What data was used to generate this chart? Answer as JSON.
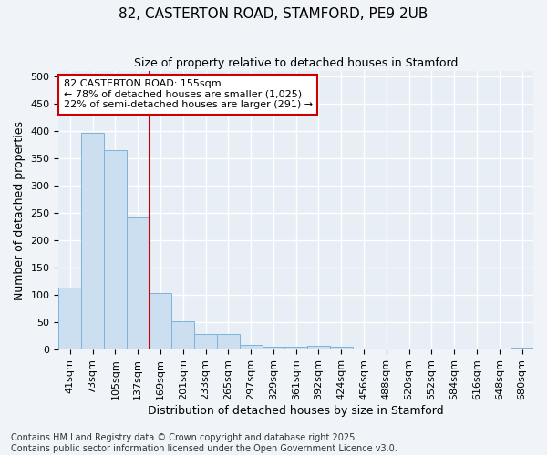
{
  "title": "82, CASTERTON ROAD, STAMFORD, PE9 2UB",
  "subtitle": "Size of property relative to detached houses in Stamford",
  "xlabel": "Distribution of detached houses by size in Stamford",
  "ylabel": "Number of detached properties",
  "categories": [
    "41sqm",
    "73sqm",
    "105sqm",
    "137sqm",
    "169sqm",
    "201sqm",
    "233sqm",
    "265sqm",
    "297sqm",
    "329sqm",
    "361sqm",
    "392sqm",
    "424sqm",
    "456sqm",
    "488sqm",
    "520sqm",
    "552sqm",
    "584sqm",
    "616sqm",
    "648sqm",
    "680sqm"
  ],
  "values": [
    113,
    397,
    365,
    242,
    104,
    51,
    29,
    29,
    8,
    5,
    5,
    6,
    5,
    1,
    1,
    1,
    2,
    1,
    0,
    1,
    3
  ],
  "bar_color": "#ccdff0",
  "bar_edge_color": "#7eb3d8",
  "background_color": "#f0f4f8",
  "plot_bg_color": "#e8eef5",
  "grid_color": "#ffffff",
  "vline_color": "#cc0000",
  "vline_x_index": 3.5,
  "annotation_text": "82 CASTERTON ROAD: 155sqm\n← 78% of detached houses are smaller (1,025)\n22% of semi-detached houses are larger (291) →",
  "annotation_box_facecolor": "#ffffff",
  "annotation_box_edgecolor": "#cc0000",
  "footnote": "Contains HM Land Registry data © Crown copyright and database right 2025.\nContains public sector information licensed under the Open Government Licence v3.0.",
  "ylim": [
    0,
    510
  ],
  "yticks": [
    0,
    50,
    100,
    150,
    200,
    250,
    300,
    350,
    400,
    450,
    500
  ],
  "title_fontsize": 11,
  "subtitle_fontsize": 9,
  "axis_label_fontsize": 9,
  "tick_fontsize": 8,
  "annotation_fontsize": 8,
  "footnote_fontsize": 7
}
